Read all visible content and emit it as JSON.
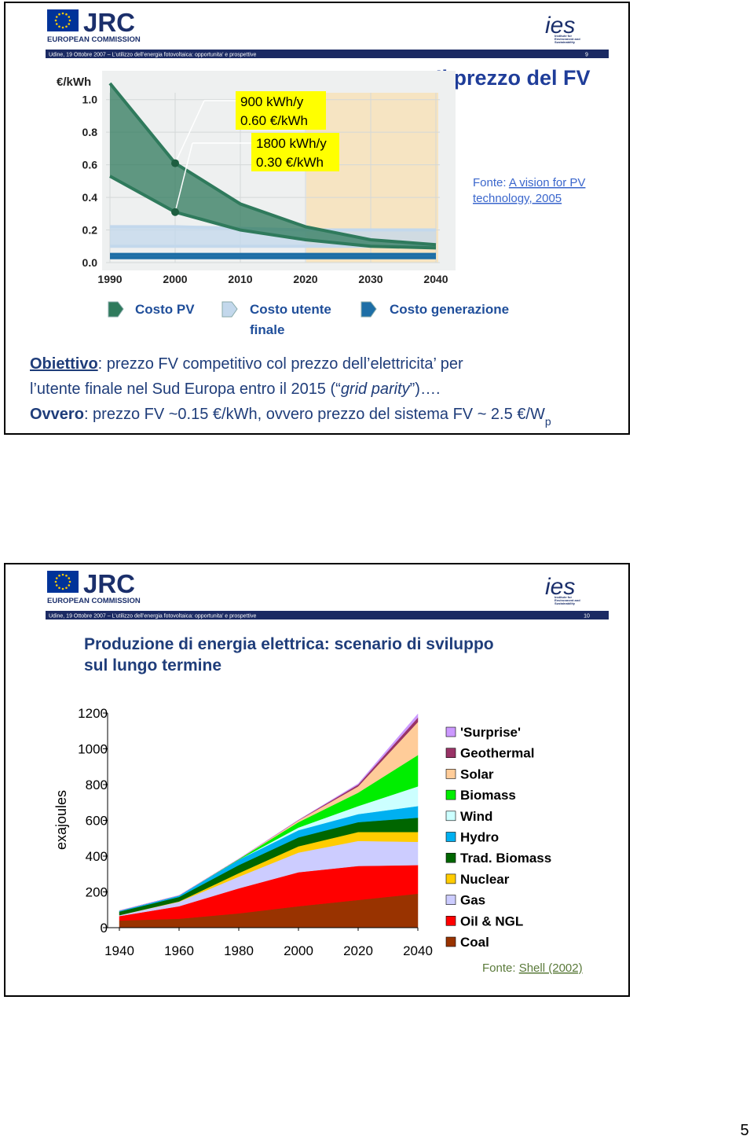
{
  "page_number": "5",
  "slides": [
    {
      "logo": {
        "name": "JRC",
        "org": "EUROPEAN COMMISSION",
        "ies": "ies",
        "ies_caption": [
          "Institute for",
          "Environment and",
          "Sustainability"
        ]
      },
      "footer": "Udine, 19 Ottobre 2007 – L’utilizzo dell’energia fotovoltaica: opportunita’ e prospettive",
      "number": "9",
      "title": "Il prezzo del FV",
      "source": [
        "Fonte: ",
        "A vision for PV",
        "technology, 2005"
      ],
      "objective": [
        "Obiettivo",
        ": prezzo FV competitivo col prezzo dell’elettricita’ per",
        "l’utente finale nel Sud Europa entro il 2015 (“",
        "grid parity",
        "”)…."
      ],
      "alternative": [
        "Ovvero",
        ": prezzo FV ~0.15 €/kWh, ovvero prezzo del sistema FV ~ 2.5 €/W",
        "p"
      ]
    },
    {
      "logo": {
        "name": "JRC",
        "org": "EUROPEAN COMMISSION",
        "ies": "ies",
        "ies_caption": [
          "Institute for",
          "Environment and",
          "Sustainability"
        ]
      },
      "footer": "Udine, 19 Ottobre 2007 – L’utilizzo dell’energia fotovoltaica: opportunita’ e prospettive",
      "number": "10",
      "source": [
        "Fonte: ",
        "Shell  (2002)"
      ]
    }
  ],
  "chart_data": [
    {
      "type": "band",
      "y_label": "€/kWh",
      "x": [
        1990,
        2000,
        2010,
        2020,
        2030,
        2040
      ],
      "xlim": [
        1990,
        2040
      ],
      "xticks": [
        1990,
        2000,
        2010,
        2020,
        2030,
        2040
      ],
      "ylim": [
        0,
        1.1
      ],
      "yticks": [
        {
          "value": 0,
          "label": "0.0"
        },
        0.2,
        0.4,
        0.6,
        0.8,
        {
          "value": 1,
          "label": "1.0"
        }
      ],
      "grid": true,
      "legend": "bottom",
      "annotations": [
        "900 kWh/y",
        "0.60 €/kWh",
        "1800 kWh/y",
        "0.30 €/kWh"
      ],
      "series": [
        {
          "name": "Costo PV",
          "color": "#2f7a5c",
          "values": [
            1.1,
            0.61,
            0.36,
            0.22,
            0.14,
            0.11
          ],
          "lower": [
            0.53,
            0.31,
            0.2,
            0.14,
            0.1,
            0.09
          ]
        },
        {
          "name": "Costo utente finale",
          "color": "#c3d8ec",
          "values": [
            0.22,
            0.22,
            0.21,
            0.2,
            0.2,
            0.2
          ],
          "lower": [
            0.1,
            0.1,
            0.1,
            0.1,
            0.1,
            0.1
          ]
        },
        {
          "name": "Costo generazione",
          "color": "#1d6ea6",
          "values": [
            0.05,
            0.05,
            0.05,
            0.05,
            0.05,
            0.05
          ],
          "lower": [
            0.03,
            0.03,
            0.03,
            0.03,
            0.03,
            0.03
          ]
        }
      ]
    },
    {
      "type": "stacked_area",
      "title": [
        "Produzione di energia elettrica: scenario di sviluppo",
        "sul lungo termine"
      ],
      "y_label": "exajoules",
      "x": [
        1940,
        1960,
        1980,
        2000,
        2020,
        2040
      ],
      "xlim": [
        1940,
        2040
      ],
      "xticks": [
        1940,
        1960,
        1980,
        2000,
        2020,
        2040
      ],
      "ylim": [
        0,
        1200
      ],
      "yticks": [
        0,
        200,
        400,
        600,
        800,
        1000,
        1200
      ],
      "legend": "right",
      "series": [
        {
          "name": "Coal",
          "color": "#993300",
          "values": [
            40,
            50,
            80,
            120,
            155,
            190
          ]
        },
        {
          "name": "Oil & NGL",
          "color": "#ff0000",
          "values": [
            25,
            70,
            140,
            190,
            190,
            160
          ]
        },
        {
          "name": "Gas",
          "color": "#ccccff",
          "values": [
            5,
            25,
            65,
            110,
            140,
            130
          ]
        },
        {
          "name": "Nuclear",
          "color": "#ffcc00",
          "values": [
            0,
            2,
            20,
            35,
            50,
            55
          ]
        },
        {
          "name": "Trad. Biomass",
          "color": "#006600",
          "values": [
            20,
            25,
            45,
            50,
            55,
            80
          ]
        },
        {
          "name": "Hydro",
          "color": "#00b0f0",
          "values": [
            5,
            8,
            30,
            40,
            45,
            65
          ]
        },
        {
          "name": "Wind",
          "color": "#ccffff",
          "values": [
            0,
            0,
            0,
            15,
            45,
            110
          ]
        },
        {
          "name": "Biomass",
          "color": "#00ee00",
          "values": [
            0,
            0,
            3,
            30,
            75,
            175
          ]
        },
        {
          "name": "Solar",
          "color": "#ffcc99",
          "values": [
            0,
            0,
            1,
            10,
            35,
            185
          ]
        },
        {
          "name": "Geothermal",
          "color": "#993366",
          "values": [
            0,
            0,
            0,
            2,
            10,
            25
          ]
        },
        {
          "name": "'Surprise'",
          "color": "#cc99ff",
          "values": [
            0,
            0,
            0,
            0,
            5,
            20
          ]
        }
      ]
    }
  ]
}
